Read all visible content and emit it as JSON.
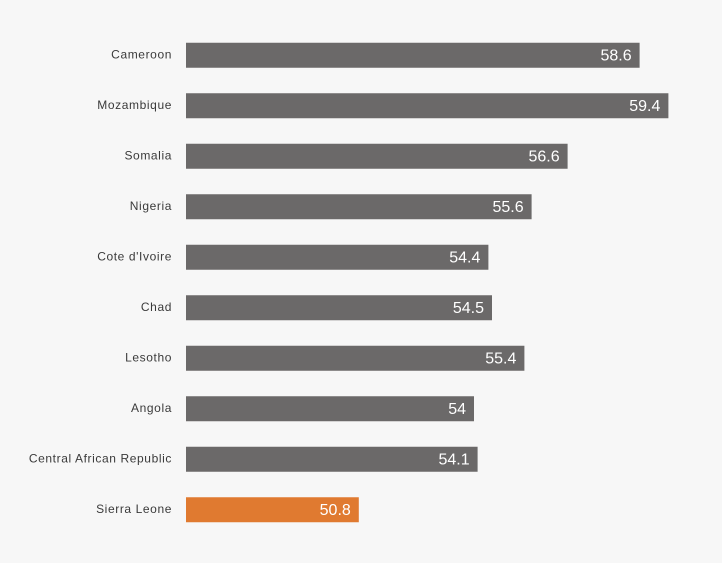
{
  "chart_data": {
    "type": "barh",
    "categories": [
      "Cameroon",
      "Mozambique",
      "Somalia",
      "Nigeria",
      "Cote d'Ivoire",
      "Chad",
      "Lesotho",
      "Angola",
      "Central African Republic",
      "Sierra Leone"
    ],
    "values": [
      58.6,
      59.4,
      56.6,
      55.6,
      54.4,
      54.5,
      55.4,
      54,
      54.1,
      50.8
    ],
    "colors": [
      "#6b6969",
      "#6b6969",
      "#6b6969",
      "#6b6969",
      "#6b6969",
      "#6b6969",
      "#6b6969",
      "#6b6969",
      "#6b6969",
      "#e07a30"
    ],
    "xlim": [
      46,
      60
    ]
  }
}
